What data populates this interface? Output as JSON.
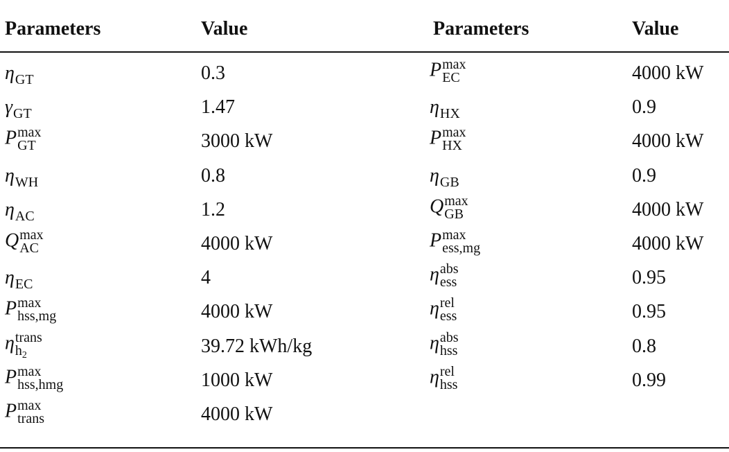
{
  "table": {
    "headers": [
      "Parameters",
      "Value",
      "Parameters",
      "Value"
    ],
    "left": [
      {
        "param": {
          "base": "η",
          "sub": "GT"
        },
        "value": "0.3"
      },
      {
        "param": {
          "base": "γ",
          "sub": "GT"
        },
        "value": "1.47"
      },
      {
        "param": {
          "base": "P",
          "sup": "max",
          "sub": "GT"
        },
        "value": "3000 kW"
      },
      {
        "param": {
          "base": "η",
          "sub": "WH"
        },
        "value": "0.8"
      },
      {
        "param": {
          "base": "η",
          "sub": "AC"
        },
        "value": "1.2"
      },
      {
        "param": {
          "base": "Q",
          "sup": "max",
          "sub": "AC"
        },
        "value": "4000 kW"
      },
      {
        "param": {
          "base": "η",
          "sub": "EC"
        },
        "value": "4"
      },
      {
        "param": {
          "base": "P",
          "sup": "max",
          "sub": "hss,mg"
        },
        "value": "4000 kW"
      },
      {
        "param": {
          "base": "η",
          "sup": "trans",
          "sub": "h",
          "subsub": "2"
        },
        "value": "39.72 kWh/kg"
      },
      {
        "param": {
          "base": "P",
          "sup": "max",
          "sub": "hss,hmg"
        },
        "value": "1000 kW"
      },
      {
        "param": {
          "base": "P",
          "sup": "max",
          "sub": "trans"
        },
        "value": "4000 kW"
      }
    ],
    "right": [
      {
        "param": {
          "base": "P",
          "sup": "max",
          "sub": "EC"
        },
        "value": "4000 kW"
      },
      {
        "param": {
          "base": "η",
          "sub": "HX"
        },
        "value": "0.9"
      },
      {
        "param": {
          "base": "P",
          "sup": "max",
          "sub": "HX"
        },
        "value": "4000 kW"
      },
      {
        "param": {
          "base": "η",
          "sub": "GB"
        },
        "value": "0.9"
      },
      {
        "param": {
          "base": "Q",
          "sup": "max",
          "sub": "GB"
        },
        "value": "4000 kW"
      },
      {
        "param": {
          "base": "P",
          "sup": "max",
          "sub": "ess,mg"
        },
        "value": "4000 kW"
      },
      {
        "param": {
          "base": "η",
          "sup": "abs",
          "sub": "ess"
        },
        "value": "0.95"
      },
      {
        "param": {
          "base": "η",
          "sup": "rel",
          "sub": "ess"
        },
        "value": "0.95"
      },
      {
        "param": {
          "base": "η",
          "sup": "abs",
          "sub": "hss"
        },
        "value": "0.8"
      },
      {
        "param": {
          "base": "η",
          "sup": "rel",
          "sub": "hss"
        },
        "value": "0.99"
      }
    ]
  }
}
